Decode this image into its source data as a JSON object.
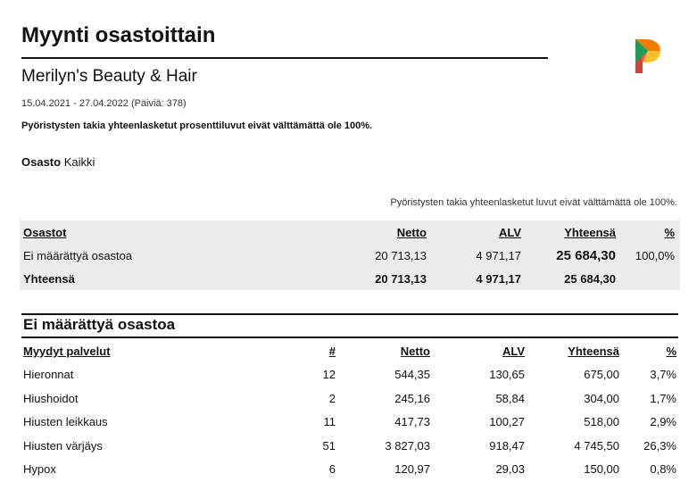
{
  "report": {
    "title": "Myynti osastoittain",
    "company": "Merilyn's Beauty & Hair",
    "date_range": "15.04.2021 - 27.04.2022 (Päiviä: 378)",
    "rounding_note": "Pyöristysten takia yhteenlasketut prosenttiluvut eivät välttämättä ole 100%.",
    "filter_label": "Osasto",
    "filter_value": "Kaikki",
    "rounding_note_right": "Pyöristysten takia yhteenlasketut luvut eivät välttämättä ole 100%."
  },
  "logo": {
    "name": "brand-logo-icon",
    "colors": [
      "#1f9d55",
      "#e53935",
      "#fbc02d",
      "#f57c00"
    ]
  },
  "summary": {
    "headers": [
      "Osastot",
      "Netto",
      "ALV",
      "Yhteensä",
      "%"
    ],
    "rows": [
      [
        "Ei määrättyä osastoa",
        "20 713,13",
        "4 971,17",
        "25 684,30",
        "100,0%"
      ]
    ],
    "total": [
      "Yhteensä",
      "20 713,13",
      "4 971,17",
      "25 684,30",
      ""
    ]
  },
  "section": {
    "title": "Ei määrättyä osastoa",
    "headers": [
      "Myydyt palvelut",
      "#",
      "Netto",
      "ALV",
      "Yhteensä",
      "%"
    ],
    "rows": [
      [
        "Hieronnat",
        "12",
        "544,35",
        "130,65",
        "675,00",
        "3,7%"
      ],
      [
        "Hiushoidot",
        "2",
        "245,16",
        "58,84",
        "304,00",
        "1,7%"
      ],
      [
        "Hiusten leikkaus",
        "11",
        "417,73",
        "100,27",
        "518,00",
        "2,9%"
      ],
      [
        "Hiusten värjäys",
        "51",
        "3 827,03",
        "918,47",
        "4 745,50",
        "26,3%"
      ],
      [
        "Hypox",
        "6",
        "120,97",
        "29,03",
        "150,00",
        "0,8%"
      ]
    ]
  }
}
